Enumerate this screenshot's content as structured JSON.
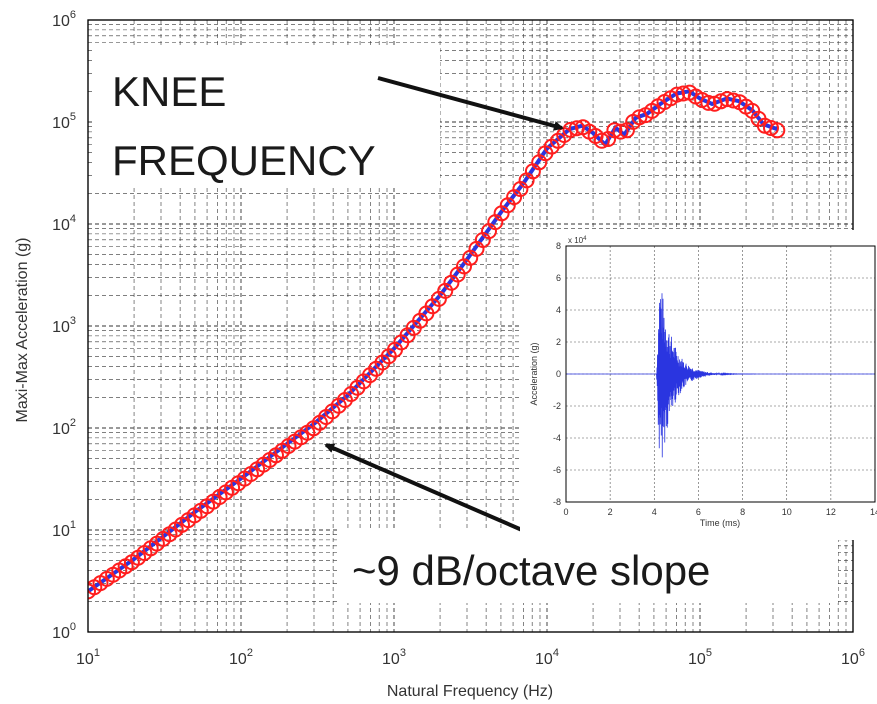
{
  "chart_data": [
    {
      "type": "scatter",
      "xlabel": "Natural Frequency (Hz)",
      "ylabel": "Maxi-Max Acceleration (g)",
      "xscale": "log",
      "yscale": "log",
      "xlim": [
        10,
        1000000
      ],
      "ylim": [
        1,
        1000000
      ],
      "grid": true,
      "x_ticks": [
        {
          "base": "10",
          "exp": "1"
        },
        {
          "base": "10",
          "exp": "2"
        },
        {
          "base": "10",
          "exp": "3"
        },
        {
          "base": "10",
          "exp": "4"
        },
        {
          "base": "10",
          "exp": "5"
        },
        {
          "base": "10",
          "exp": "6"
        }
      ],
      "y_ticks": [
        {
          "base": "10",
          "exp": "0"
        },
        {
          "base": "10",
          "exp": "1"
        },
        {
          "base": "10",
          "exp": "2"
        },
        {
          "base": "10",
          "exp": "3"
        },
        {
          "base": "10",
          "exp": "4"
        },
        {
          "base": "10",
          "exp": "5"
        },
        {
          "base": "10",
          "exp": "6"
        }
      ],
      "series": [
        {
          "style": "line",
          "color": "#2a35e0",
          "x": [
            10,
            20,
            50,
            100,
            200,
            300,
            500,
            1000,
            2000,
            3000,
            5000,
            7000,
            10000,
            14000,
            17000,
            20000,
            24000,
            28000,
            32000,
            38000,
            45000,
            55000,
            70000,
            85000,
            100000,
            120000,
            150000,
            180000,
            220000,
            260000,
            320000
          ],
          "y": [
            2.5,
            5.2,
            15,
            32,
            70,
            110,
            210,
            600,
            2000,
            4500,
            13000,
            25000,
            55000,
            85000,
            92000,
            78000,
            60000,
            88000,
            75000,
            110000,
            120000,
            150000,
            190000,
            200000,
            170000,
            150000,
            170000,
            160000,
            130000,
            95000,
            85000
          ]
        },
        {
          "style": "circles",
          "color": "#ff1e1e",
          "x": [
            10,
            20,
            50,
            100,
            200,
            300,
            500,
            1000,
            2000,
            3000,
            5000,
            7000,
            10000,
            14000,
            17000,
            20000,
            24000,
            28000,
            32000,
            38000,
            45000,
            55000,
            70000,
            85000,
            100000,
            120000,
            150000,
            180000,
            220000,
            260000,
            320000
          ],
          "y": [
            2.5,
            5.0,
            14,
            30,
            65,
            100,
            200,
            570,
            1900,
            4200,
            12500,
            24000,
            52000,
            83000,
            90000,
            76000,
            62000,
            86000,
            77000,
            108000,
            118000,
            148000,
            185000,
            195000,
            168000,
            148000,
            168000,
            158000,
            128000,
            93000,
            83000
          ]
        }
      ],
      "annotations": [
        {
          "lines": [
            "KNEE",
            "FREQUENCY"
          ],
          "arrow_to": [
            15000,
            90000
          ]
        },
        {
          "lines": [
            "~9 dB/octave slope"
          ],
          "arrow_to": [
            300,
            95
          ]
        }
      ]
    },
    {
      "type": "line",
      "xlabel": "Time (ms)",
      "ylabel": "Acceleration (g)",
      "xlim": [
        0,
        14
      ],
      "ylim": [
        -80000,
        80000
      ],
      "grid": true,
      "y_multiplier": {
        "base": "x 10",
        "exp": "4"
      },
      "x_ticks": [
        "0",
        "2",
        "4",
        "6",
        "8",
        "10",
        "12",
        "14"
      ],
      "y_ticks": [
        "-8",
        "-6",
        "-4",
        "-2",
        "0",
        "2",
        "4",
        "6",
        "8"
      ],
      "series": [
        {
          "color": "#2a35e0",
          "burst_start_ms": 4.1,
          "burst_end_ms": 10,
          "peak_positive": 63000,
          "peak_negative": -65000
        }
      ]
    }
  ]
}
